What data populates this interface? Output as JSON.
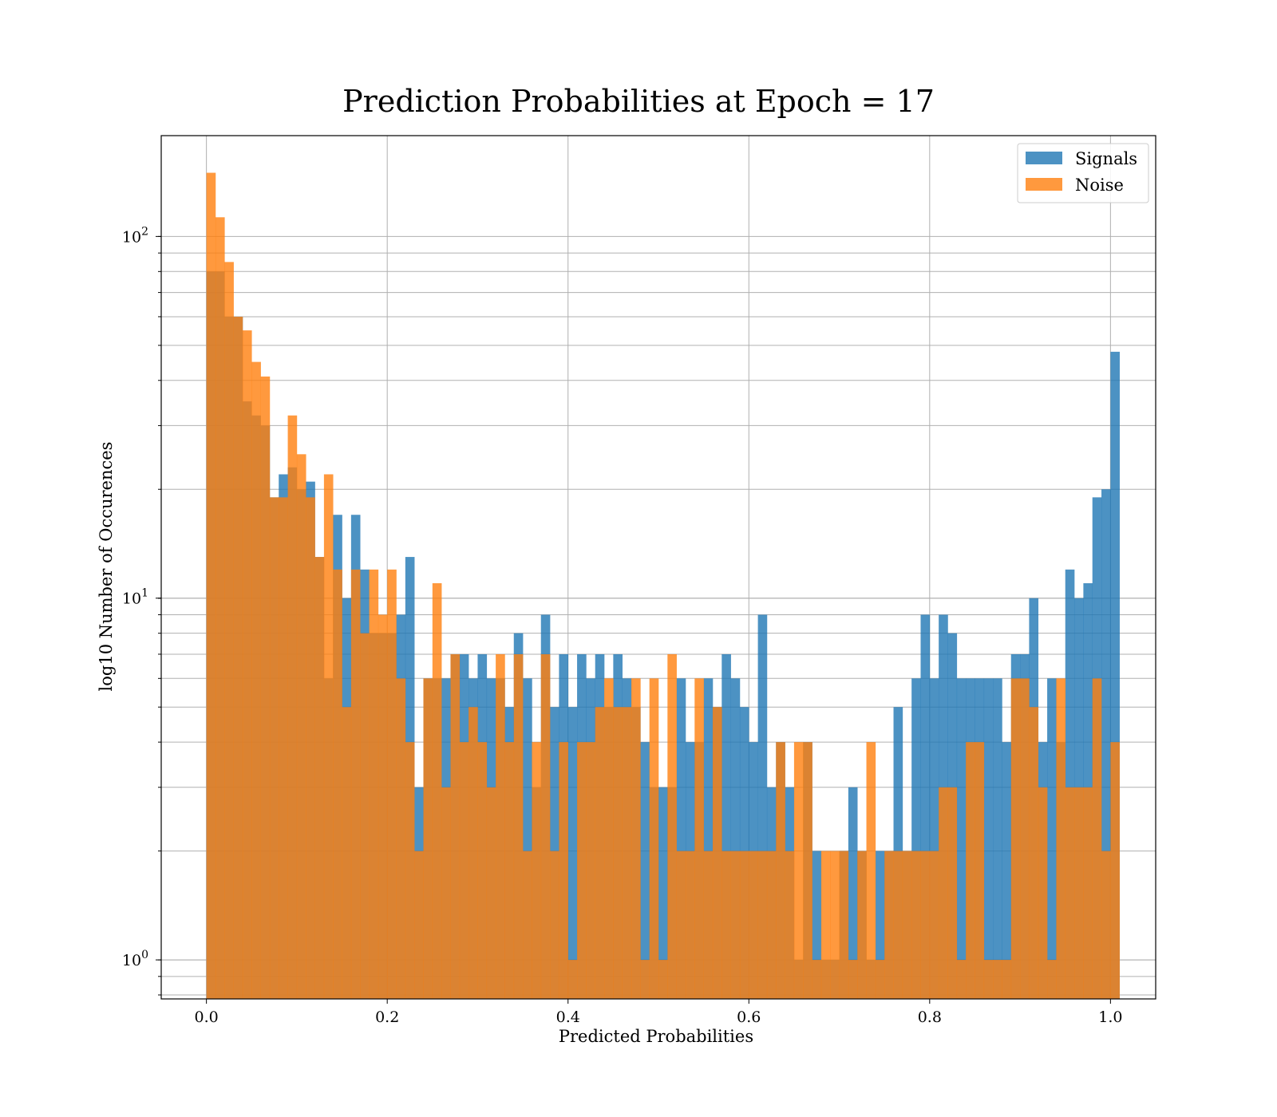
{
  "chart_data": {
    "type": "bar",
    "title": "Prediction Probabilities at Epoch = 17",
    "xlabel": "Predicted Probabilities",
    "ylabel": "log10 Number of Occurences",
    "yscale": "log",
    "xlim": [
      -0.05,
      1.05
    ],
    "ylim": [
      0.78,
      190
    ],
    "xticks": [
      "0.0",
      "0.2",
      "0.4",
      "0.6",
      "0.8",
      "1.0"
    ],
    "yticks": [
      {
        "base": "10",
        "exp": "0",
        "value": 1
      },
      {
        "base": "10",
        "exp": "1",
        "value": 10
      },
      {
        "base": "10",
        "exp": "2",
        "value": 100
      }
    ],
    "grid": true,
    "legend_position": "top-right",
    "bin_start": 0.0,
    "bin_width": 0.01,
    "series": [
      {
        "name": "Signals",
        "color": "#1f77b4",
        "values": [
          80,
          80,
          60,
          60,
          35,
          32,
          30,
          19,
          22,
          23,
          20,
          21,
          13,
          6,
          17,
          10,
          17,
          12,
          8,
          8,
          8,
          9,
          13,
          3,
          6,
          6,
          6,
          7,
          7,
          6,
          7,
          6,
          6,
          5,
          8,
          6,
          3,
          9,
          5,
          7,
          5,
          7,
          6,
          7,
          5,
          7,
          6,
          5,
          4,
          3,
          3,
          3,
          6,
          4,
          4,
          6,
          5,
          7,
          6,
          5,
          4,
          9,
          3,
          4,
          3,
          1,
          4,
          2,
          1,
          1,
          2,
          3,
          2,
          1,
          2,
          2,
          5,
          2,
          6,
          9,
          6,
          9,
          8,
          6,
          6,
          6,
          6,
          6,
          4,
          7,
          7,
          10,
          4,
          6,
          4,
          12,
          10,
          11,
          19,
          20,
          48
        ],
        "visible_values_note": ""
      },
      {
        "name": "Noise",
        "color": "#ff7f0e",
        "values": [
          150,
          113,
          85,
          60,
          55,
          45,
          41,
          19,
          19,
          32,
          25,
          19,
          13,
          22,
          12,
          5,
          12,
          8,
          12,
          9,
          12,
          6,
          4,
          2,
          6,
          11,
          3,
          7,
          4,
          5,
          4,
          3,
          7,
          4,
          7,
          2,
          4,
          7,
          2,
          4,
          1,
          4,
          4,
          5,
          6,
          5,
          5,
          6,
          1,
          6,
          1,
          7,
          2,
          2,
          6,
          2,
          5,
          2,
          2,
          2,
          2,
          2,
          2,
          4,
          2,
          4,
          4,
          1,
          2,
          2,
          2,
          1,
          2,
          4,
          1,
          2,
          2,
          2,
          2,
          2,
          2,
          3,
          3,
          1,
          4,
          4,
          1,
          1,
          1,
          6,
          6,
          5,
          3,
          1,
          6,
          3,
          3,
          3,
          6,
          2,
          4
        ],
        "visible_values_note": ""
      }
    ]
  }
}
